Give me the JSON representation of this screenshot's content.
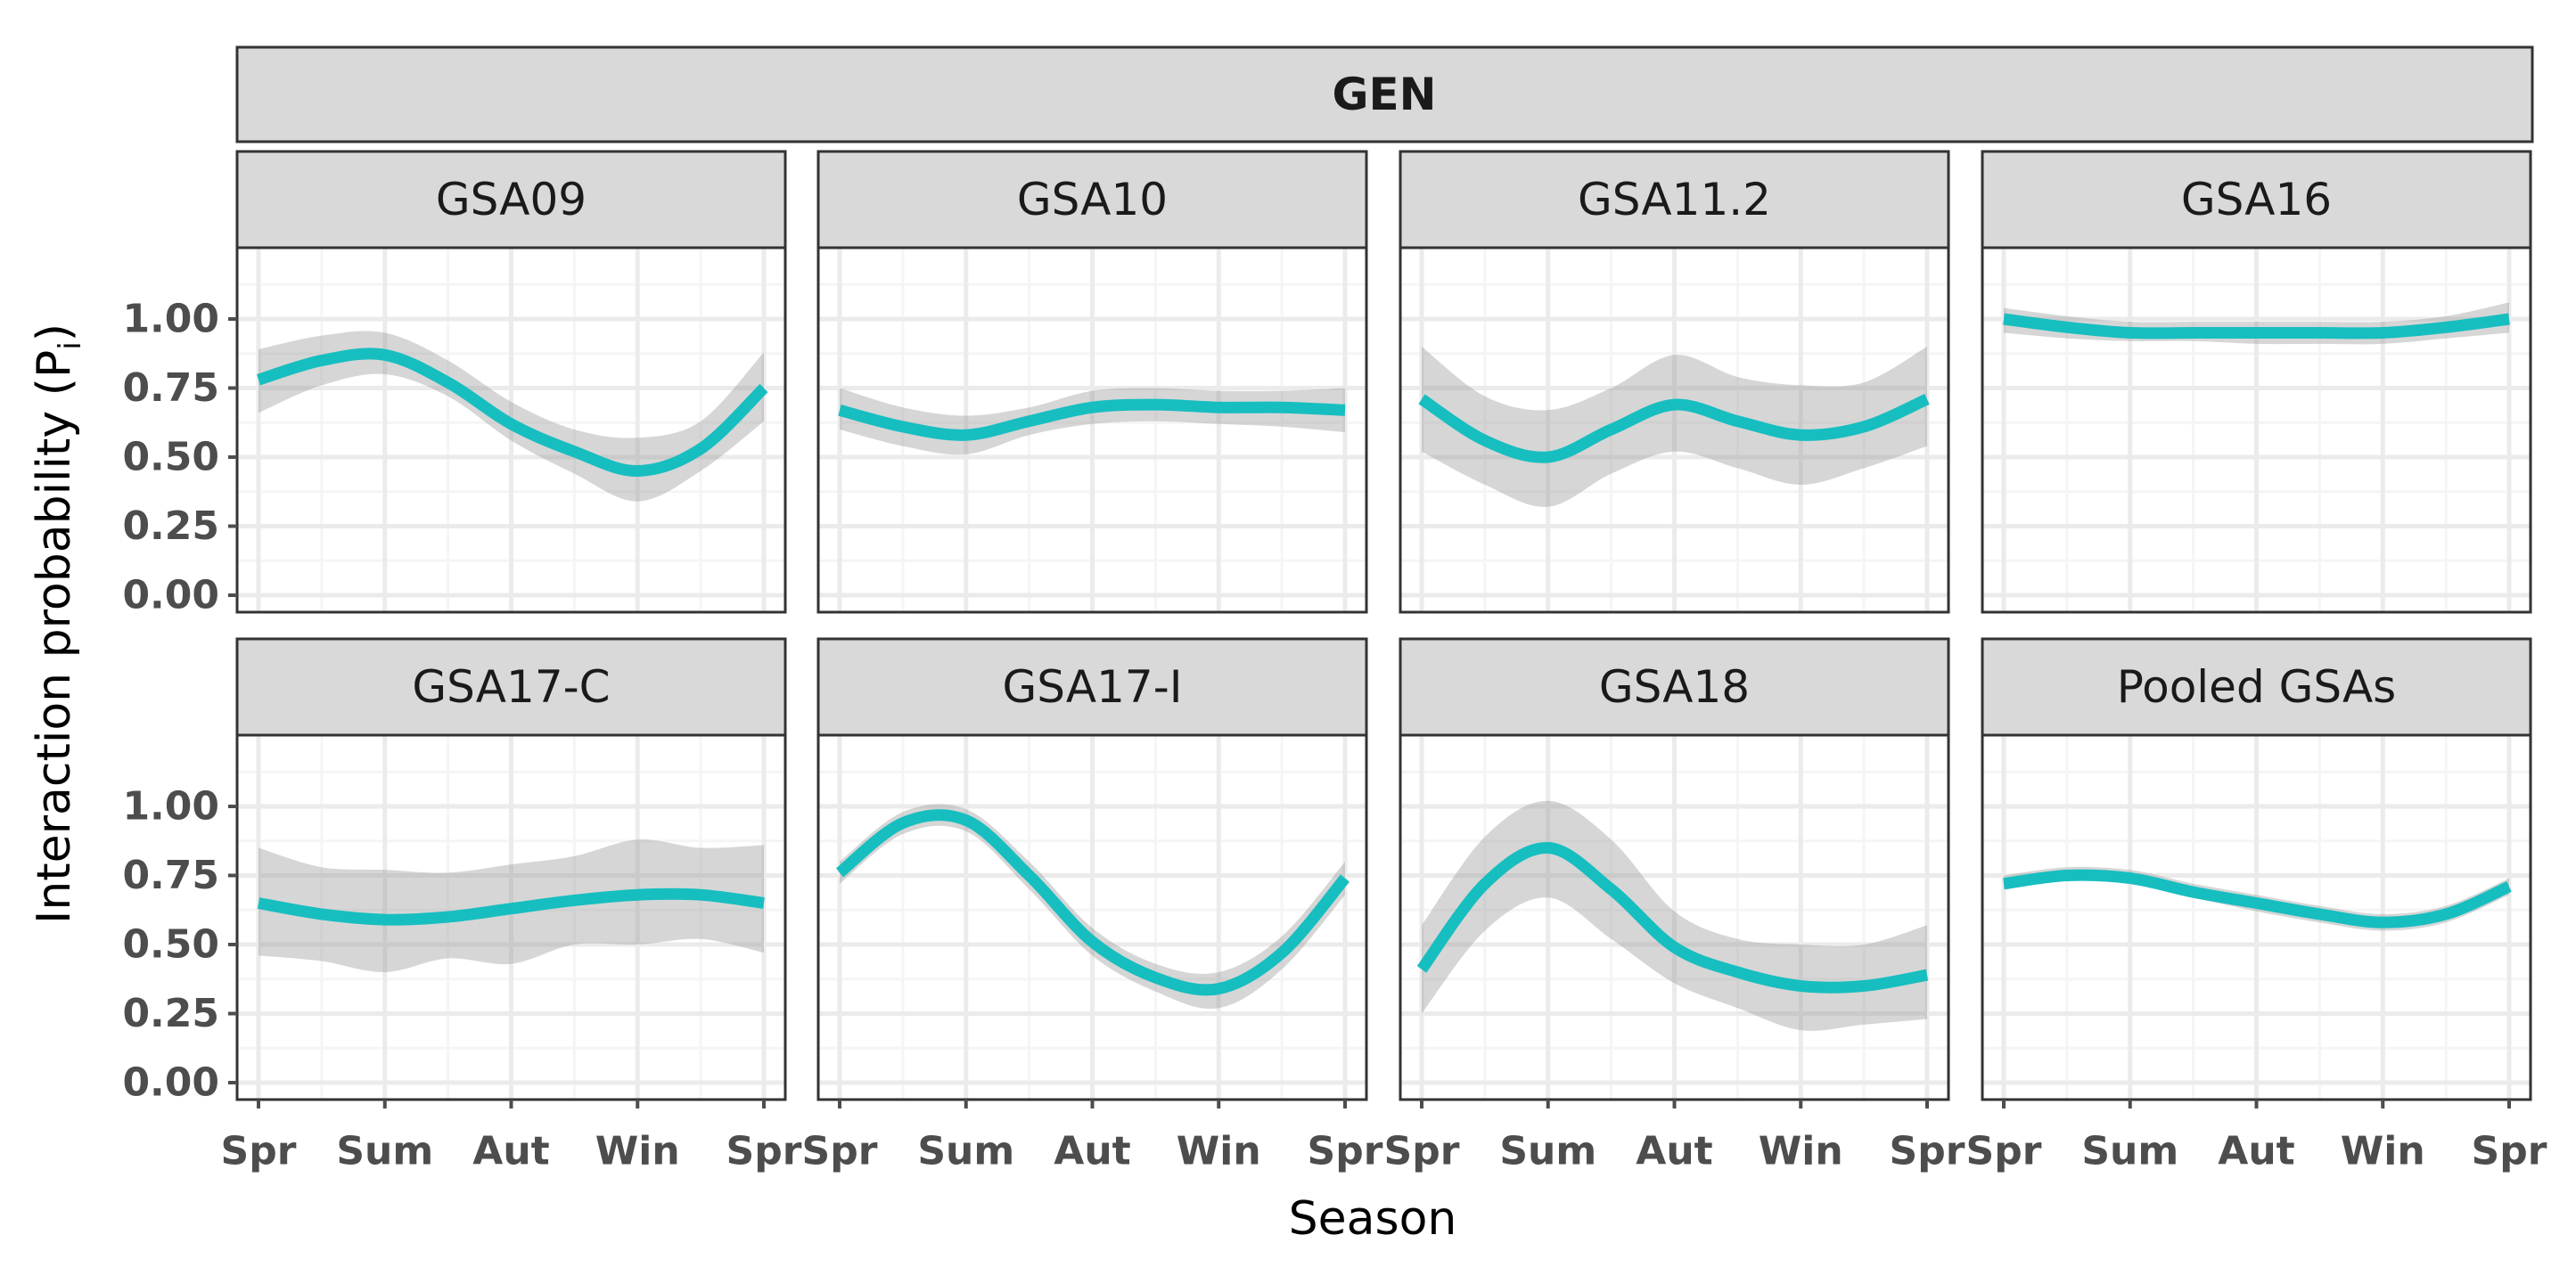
{
  "colors": {
    "line": "#17BEC0",
    "ribbon": "#999999",
    "strip_bg": "#D9D9D9",
    "strip_border": "#333333",
    "panel_border": "#333333",
    "grid_major": "#EBEBEB",
    "grid_minor": "#F5F5F5",
    "tick_text": "#4D4D4D"
  },
  "chart_data": {
    "type": "line",
    "overall_strip": "GEN",
    "xlabel": "Season",
    "ylabel_main": "Interaction probability (P",
    "ylabel_sub": "i",
    "ylabel_close": ")",
    "x_ticks": [
      "Spr",
      "Sum",
      "Aut",
      "Win",
      "Spr"
    ],
    "y_ticks": [
      "0.00",
      "0.25",
      "0.50",
      "0.75",
      "1.00"
    ],
    "xlim": [
      0,
      4
    ],
    "ylim": [
      0,
      1
    ],
    "grid": true,
    "facets": [
      {
        "name": "GSA09",
        "x": [
          0,
          0.5,
          1,
          1.5,
          2,
          2.5,
          3,
          3.5,
          4
        ],
        "y": [
          0.78,
          0.85,
          0.87,
          0.77,
          0.62,
          0.52,
          0.45,
          0.53,
          0.75
        ],
        "lower": [
          0.66,
          0.76,
          0.8,
          0.72,
          0.56,
          0.44,
          0.34,
          0.45,
          0.63
        ],
        "upper": [
          0.89,
          0.94,
          0.95,
          0.85,
          0.7,
          0.6,
          0.57,
          0.63,
          0.88
        ]
      },
      {
        "name": "GSA10",
        "x": [
          0,
          0.5,
          1,
          1.5,
          2,
          2.5,
          3,
          3.5,
          4
        ],
        "y": [
          0.67,
          0.61,
          0.58,
          0.63,
          0.68,
          0.69,
          0.68,
          0.68,
          0.67
        ],
        "lower": [
          0.6,
          0.54,
          0.51,
          0.58,
          0.62,
          0.63,
          0.62,
          0.61,
          0.59
        ],
        "upper": [
          0.75,
          0.68,
          0.65,
          0.68,
          0.74,
          0.75,
          0.74,
          0.74,
          0.75
        ]
      },
      {
        "name": "GSA11.2",
        "x": [
          0,
          0.5,
          1,
          1.5,
          2,
          2.5,
          3,
          3.5,
          4
        ],
        "y": [
          0.71,
          0.56,
          0.5,
          0.6,
          0.69,
          0.63,
          0.58,
          0.61,
          0.71
        ],
        "lower": [
          0.52,
          0.4,
          0.32,
          0.44,
          0.52,
          0.46,
          0.4,
          0.46,
          0.54
        ],
        "upper": [
          0.9,
          0.72,
          0.67,
          0.75,
          0.87,
          0.79,
          0.76,
          0.77,
          0.9
        ]
      },
      {
        "name": "GSA16",
        "x": [
          0,
          0.5,
          1,
          1.5,
          2,
          2.5,
          3,
          3.5,
          4
        ],
        "y": [
          1.0,
          0.97,
          0.95,
          0.95,
          0.95,
          0.95,
          0.95,
          0.97,
          1.0
        ],
        "lower": [
          0.95,
          0.93,
          0.92,
          0.92,
          0.91,
          0.91,
          0.91,
          0.93,
          0.95
        ],
        "upper": [
          1.04,
          1.01,
          0.99,
          0.99,
          0.99,
          0.99,
          0.99,
          1.01,
          1.06
        ]
      },
      {
        "name": "GSA17-C",
        "x": [
          0,
          0.5,
          1,
          1.5,
          2,
          2.5,
          3,
          3.5,
          4
        ],
        "y": [
          0.65,
          0.61,
          0.59,
          0.6,
          0.63,
          0.66,
          0.68,
          0.68,
          0.65
        ],
        "lower": [
          0.46,
          0.44,
          0.4,
          0.45,
          0.43,
          0.5,
          0.5,
          0.52,
          0.47
        ],
        "upper": [
          0.85,
          0.78,
          0.77,
          0.76,
          0.79,
          0.82,
          0.88,
          0.85,
          0.86
        ]
      },
      {
        "name": "GSA17-I",
        "x": [
          0,
          0.5,
          1,
          1.5,
          2,
          2.5,
          3,
          3.5,
          4
        ],
        "y": [
          0.76,
          0.94,
          0.95,
          0.75,
          0.51,
          0.38,
          0.34,
          0.47,
          0.74
        ],
        "lower": [
          0.72,
          0.9,
          0.91,
          0.7,
          0.46,
          0.33,
          0.27,
          0.41,
          0.68
        ],
        "upper": [
          0.8,
          0.98,
          0.99,
          0.8,
          0.56,
          0.43,
          0.4,
          0.53,
          0.8
        ]
      },
      {
        "name": "GSA18",
        "x": [
          0,
          0.5,
          1,
          1.5,
          2,
          2.5,
          3,
          3.5,
          4
        ],
        "y": [
          0.41,
          0.72,
          0.85,
          0.7,
          0.49,
          0.4,
          0.35,
          0.35,
          0.39
        ],
        "lower": [
          0.25,
          0.55,
          0.67,
          0.52,
          0.36,
          0.27,
          0.19,
          0.21,
          0.23
        ],
        "upper": [
          0.57,
          0.89,
          1.02,
          0.88,
          0.62,
          0.52,
          0.5,
          0.5,
          0.57
        ]
      },
      {
        "name": "Pooled GSAs",
        "x": [
          0,
          0.5,
          1,
          1.5,
          2,
          2.5,
          3,
          3.5,
          4
        ],
        "y": [
          0.72,
          0.75,
          0.74,
          0.69,
          0.65,
          0.61,
          0.58,
          0.61,
          0.71
        ],
        "lower": [
          0.7,
          0.73,
          0.72,
          0.67,
          0.62,
          0.58,
          0.55,
          0.58,
          0.68
        ],
        "upper": [
          0.75,
          0.78,
          0.77,
          0.72,
          0.68,
          0.64,
          0.61,
          0.64,
          0.74
        ]
      }
    ]
  }
}
